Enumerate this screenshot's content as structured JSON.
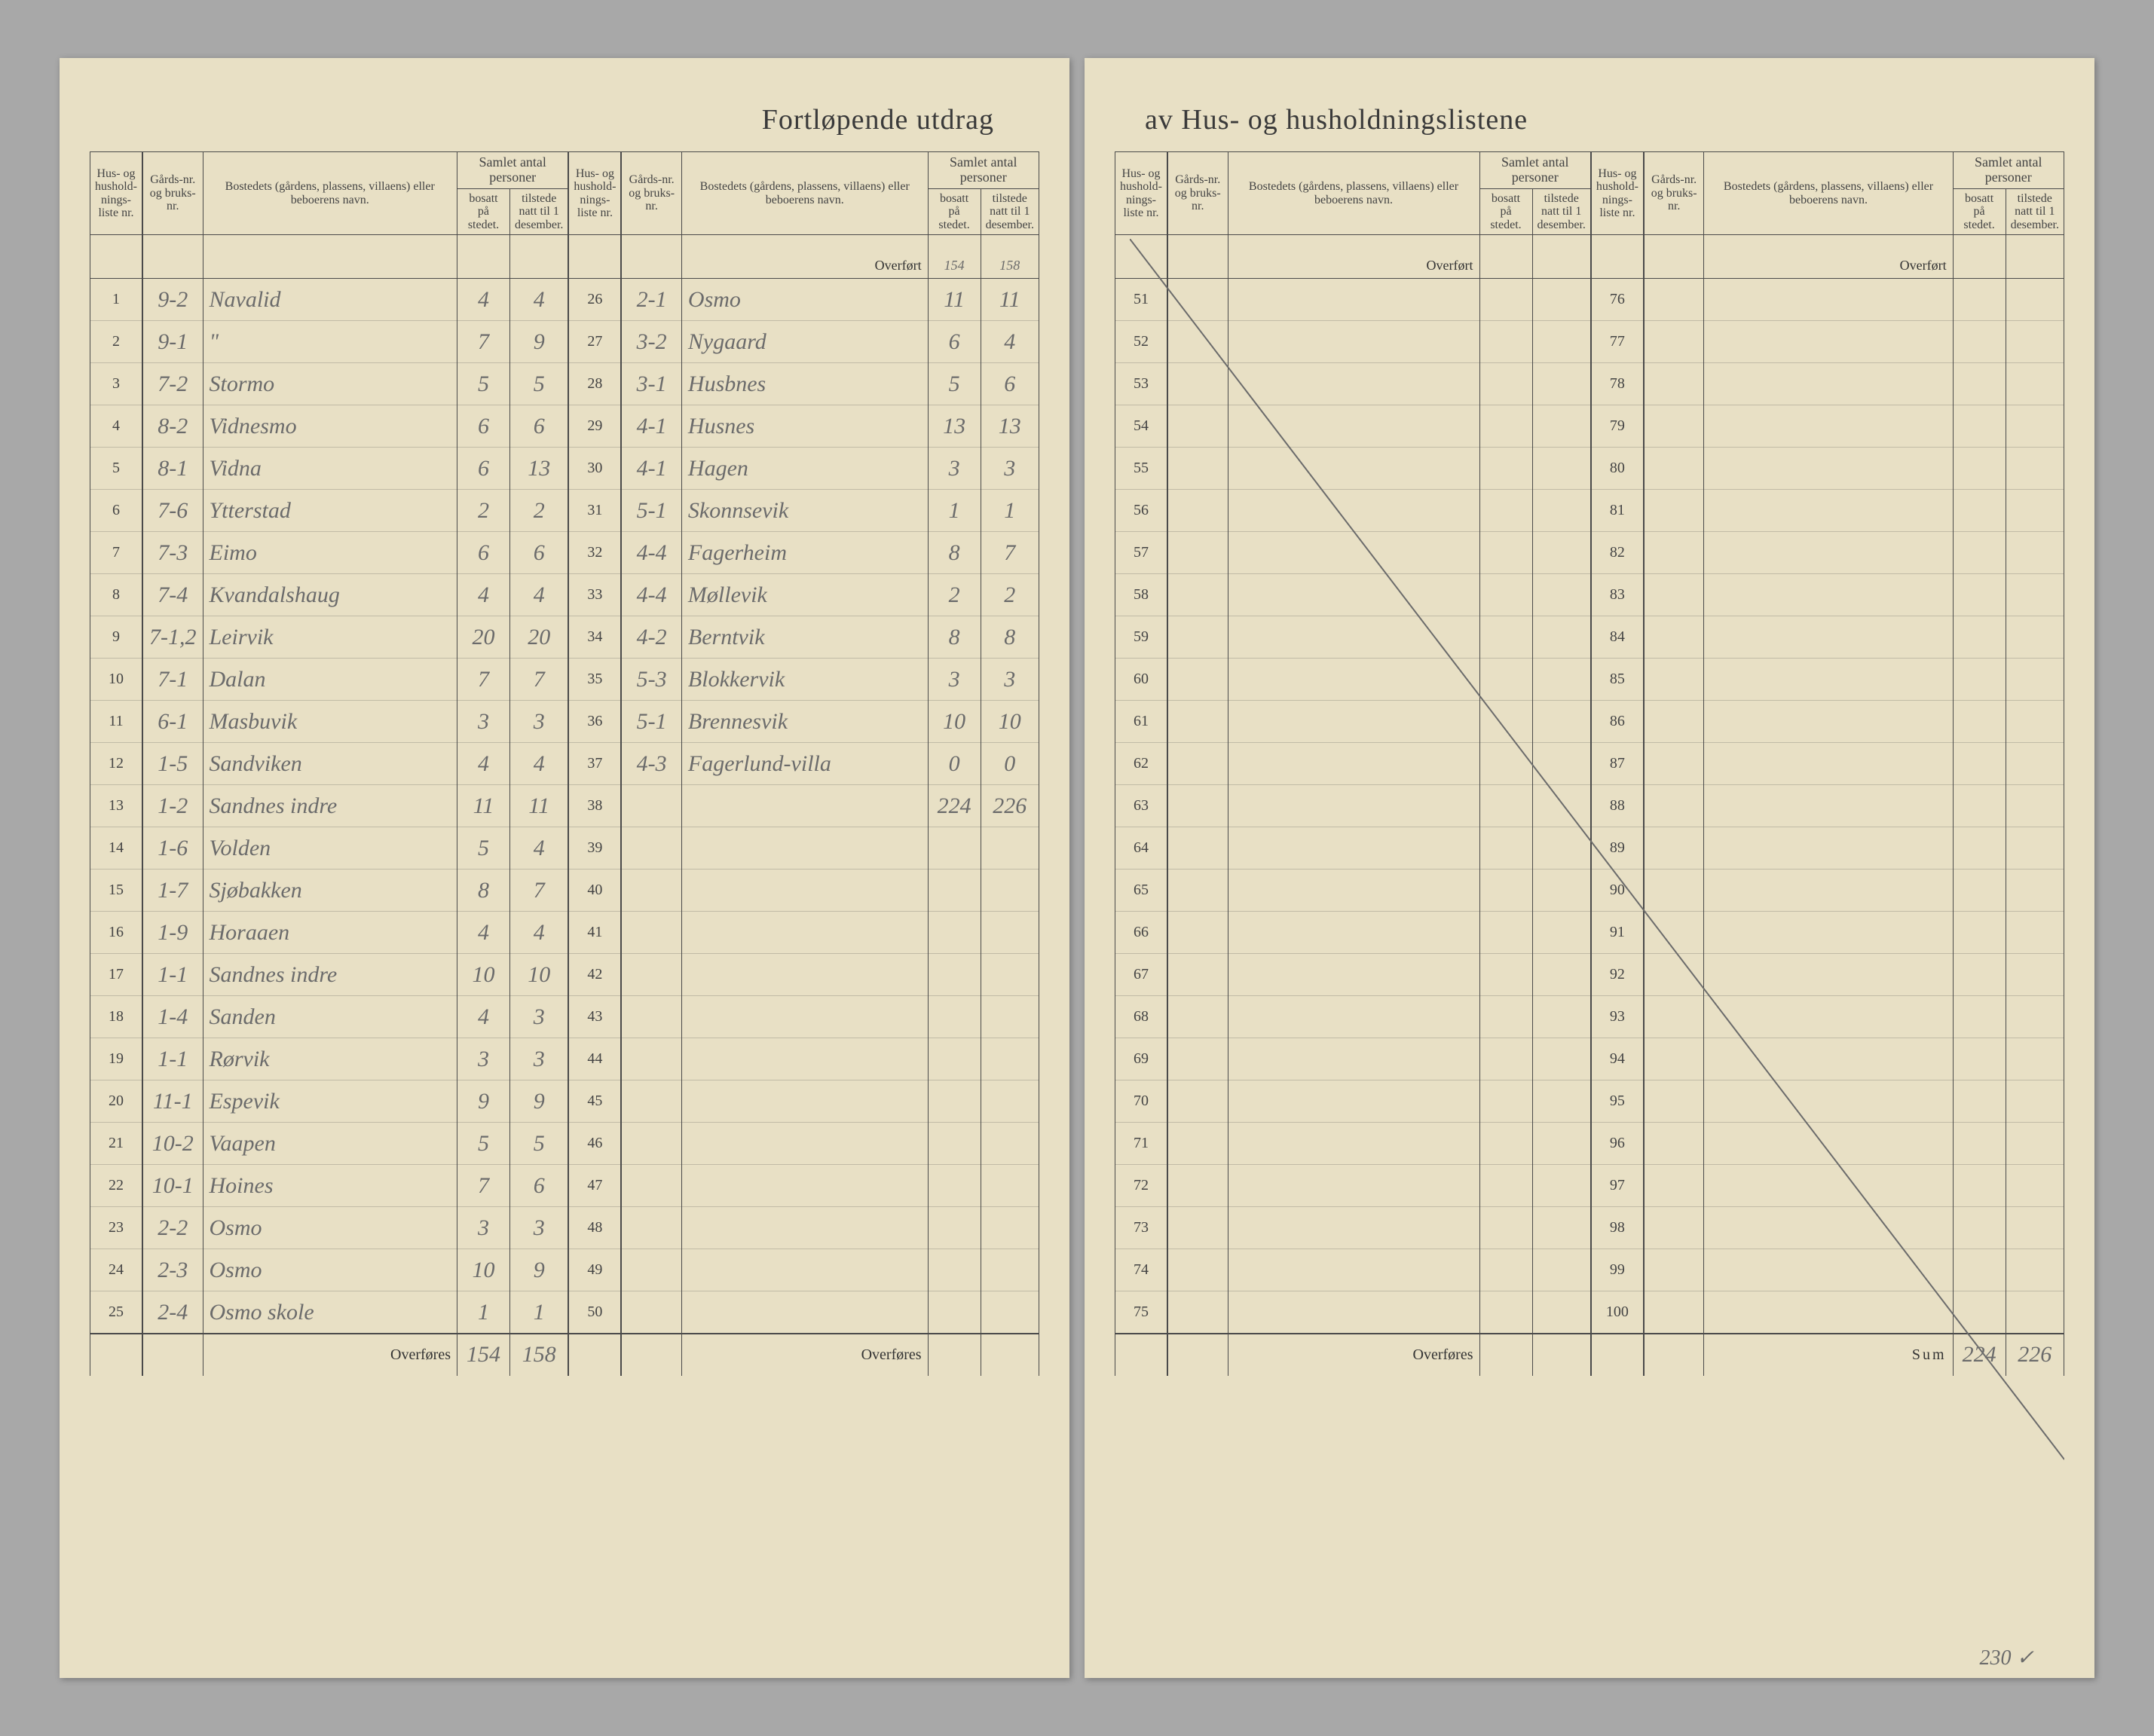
{
  "title_left": "Fortløpende utdrag",
  "title_right": "av Hus- og husholdningslistene",
  "headers": {
    "husliste": "Hus- og hushold-nings-liste nr.",
    "gards": "Gårds-nr. og bruks-nr.",
    "bosted": "Bostedets (gårdens, plassens, villaens) eller beboerens navn.",
    "samlet": "Samlet antal personer",
    "bosatt": "bosatt på stedet.",
    "tilstede": "tilstede natt til 1 desember."
  },
  "overfort_label": "Overført",
  "overfores_label": "Overføres",
  "sum_label": "Sum",
  "carry_col1": {
    "bosatt": "154",
    "tilstede": "158"
  },
  "rows_col1": [
    {
      "n": "1",
      "g": "9-2",
      "name": "Navalid",
      "b": "4",
      "t": "4"
    },
    {
      "n": "2",
      "g": "9-1",
      "name": "\"",
      "b": "7",
      "t": "9"
    },
    {
      "n": "3",
      "g": "7-2",
      "name": "Stormo",
      "b": "5",
      "t": "5"
    },
    {
      "n": "4",
      "g": "8-2",
      "name": "Vidnesmo",
      "b": "6",
      "t": "6"
    },
    {
      "n": "5",
      "g": "8-1",
      "name": "Vidna",
      "b": "6",
      "t": "13"
    },
    {
      "n": "6",
      "g": "7-6",
      "name": "Ytterstad",
      "b": "2",
      "t": "2"
    },
    {
      "n": "7",
      "g": "7-3",
      "name": "Eimo",
      "b": "6",
      "t": "6"
    },
    {
      "n": "8",
      "g": "7-4",
      "name": "Kvandalshaug",
      "b": "4",
      "t": "4"
    },
    {
      "n": "9",
      "g": "7-1,2",
      "name": "Leirvik",
      "b": "20",
      "t": "20"
    },
    {
      "n": "10",
      "g": "7-1",
      "name": "Dalan",
      "b": "7",
      "t": "7"
    },
    {
      "n": "11",
      "g": "6-1",
      "name": "Masbuvik",
      "b": "3",
      "t": "3"
    },
    {
      "n": "12",
      "g": "1-5",
      "name": "Sandviken",
      "b": "4",
      "t": "4"
    },
    {
      "n": "13",
      "g": "1-2",
      "name": "Sandnes indre",
      "b": "11",
      "t": "11"
    },
    {
      "n": "14",
      "g": "1-6",
      "name": "Volden",
      "b": "5",
      "t": "4"
    },
    {
      "n": "15",
      "g": "1-7",
      "name": "Sjøbakken",
      "b": "8",
      "t": "7"
    },
    {
      "n": "16",
      "g": "1-9",
      "name": "Horaaen",
      "b": "4",
      "t": "4"
    },
    {
      "n": "17",
      "g": "1-1",
      "name": "Sandnes indre",
      "b": "10",
      "t": "10"
    },
    {
      "n": "18",
      "g": "1-4",
      "name": "Sanden",
      "b": "4",
      "t": "3"
    },
    {
      "n": "19",
      "g": "1-1",
      "name": "Rørvik",
      "b": "3",
      "t": "3"
    },
    {
      "n": "20",
      "g": "11-1",
      "name": "Espevik",
      "b": "9",
      "t": "9"
    },
    {
      "n": "21",
      "g": "10-2",
      "name": "Vaapen",
      "b": "5",
      "t": "5"
    },
    {
      "n": "22",
      "g": "10-1",
      "name": "Hoines",
      "b": "7",
      "t": "6"
    },
    {
      "n": "23",
      "g": "2-2",
      "name": "Osmo",
      "b": "3",
      "t": "3"
    },
    {
      "n": "24",
      "g": "2-3",
      "name": "Osmo",
      "b": "10",
      "t": "9"
    },
    {
      "n": "25",
      "g": "2-4",
      "name": "Osmo skole",
      "b": "1",
      "t": "1"
    }
  ],
  "footer_col1": {
    "bosatt": "154",
    "tilstede": "158"
  },
  "rows_col2": [
    {
      "n": "26",
      "g": "2-1",
      "name": "Osmo",
      "b": "11",
      "t": "11"
    },
    {
      "n": "27",
      "g": "3-2",
      "name": "Nygaard",
      "b": "6",
      "t": "4"
    },
    {
      "n": "28",
      "g": "3-1",
      "name": "Husbnes",
      "b": "5",
      "t": "6"
    },
    {
      "n": "29",
      "g": "4-1",
      "name": "Husnes",
      "b": "13",
      "t": "13"
    },
    {
      "n": "30",
      "g": "4-1",
      "name": "Hagen",
      "b": "3",
      "t": "3"
    },
    {
      "n": "31",
      "g": "5-1",
      "name": "Skonnsevik",
      "b": "1",
      "t": "1"
    },
    {
      "n": "32",
      "g": "4-4",
      "name": "Fagerheim",
      "b": "8",
      "t": "7"
    },
    {
      "n": "33",
      "g": "4-4",
      "name": "Møllevik",
      "b": "2",
      "t": "2"
    },
    {
      "n": "34",
      "g": "4-2",
      "name": "Berntvik",
      "b": "8",
      "t": "8"
    },
    {
      "n": "35",
      "g": "5-3",
      "name": "Blokkervik",
      "b": "3",
      "t": "3"
    },
    {
      "n": "36",
      "g": "5-1",
      "name": "Brennesvik",
      "b": "10",
      "t": "10"
    },
    {
      "n": "37",
      "g": "4-3",
      "name": "Fagerlund-villa",
      "b": "0",
      "t": "0"
    },
    {
      "n": "38",
      "g": "",
      "name": "",
      "b": "224",
      "t": "226"
    },
    {
      "n": "39",
      "g": "",
      "name": "",
      "b": "",
      "t": ""
    },
    {
      "n": "40",
      "g": "",
      "name": "",
      "b": "",
      "t": ""
    },
    {
      "n": "41",
      "g": "",
      "name": "",
      "b": "",
      "t": ""
    },
    {
      "n": "42",
      "g": "",
      "name": "",
      "b": "",
      "t": ""
    },
    {
      "n": "43",
      "g": "",
      "name": "",
      "b": "",
      "t": ""
    },
    {
      "n": "44",
      "g": "",
      "name": "",
      "b": "",
      "t": ""
    },
    {
      "n": "45",
      "g": "",
      "name": "",
      "b": "",
      "t": ""
    },
    {
      "n": "46",
      "g": "",
      "name": "",
      "b": "",
      "t": ""
    },
    {
      "n": "47",
      "g": "",
      "name": "",
      "b": "",
      "t": ""
    },
    {
      "n": "48",
      "g": "",
      "name": "",
      "b": "",
      "t": ""
    },
    {
      "n": "49",
      "g": "",
      "name": "",
      "b": "",
      "t": ""
    },
    {
      "n": "50",
      "g": "",
      "name": "",
      "b": "",
      "t": ""
    }
  ],
  "rows_col3_start": 51,
  "rows_col3_end": 75,
  "rows_col4_start": 76,
  "rows_col4_end": 100,
  "sum_totals": {
    "bosatt": "224",
    "tilstede": "226"
  },
  "sum_corrected": {
    "bosatt": "230",
    "tilstede": ""
  },
  "colors": {
    "paper": "#e8e0c5",
    "ink": "#4a4a4a",
    "pencil": "#6b6b6b",
    "background": "#a8a8a8"
  }
}
